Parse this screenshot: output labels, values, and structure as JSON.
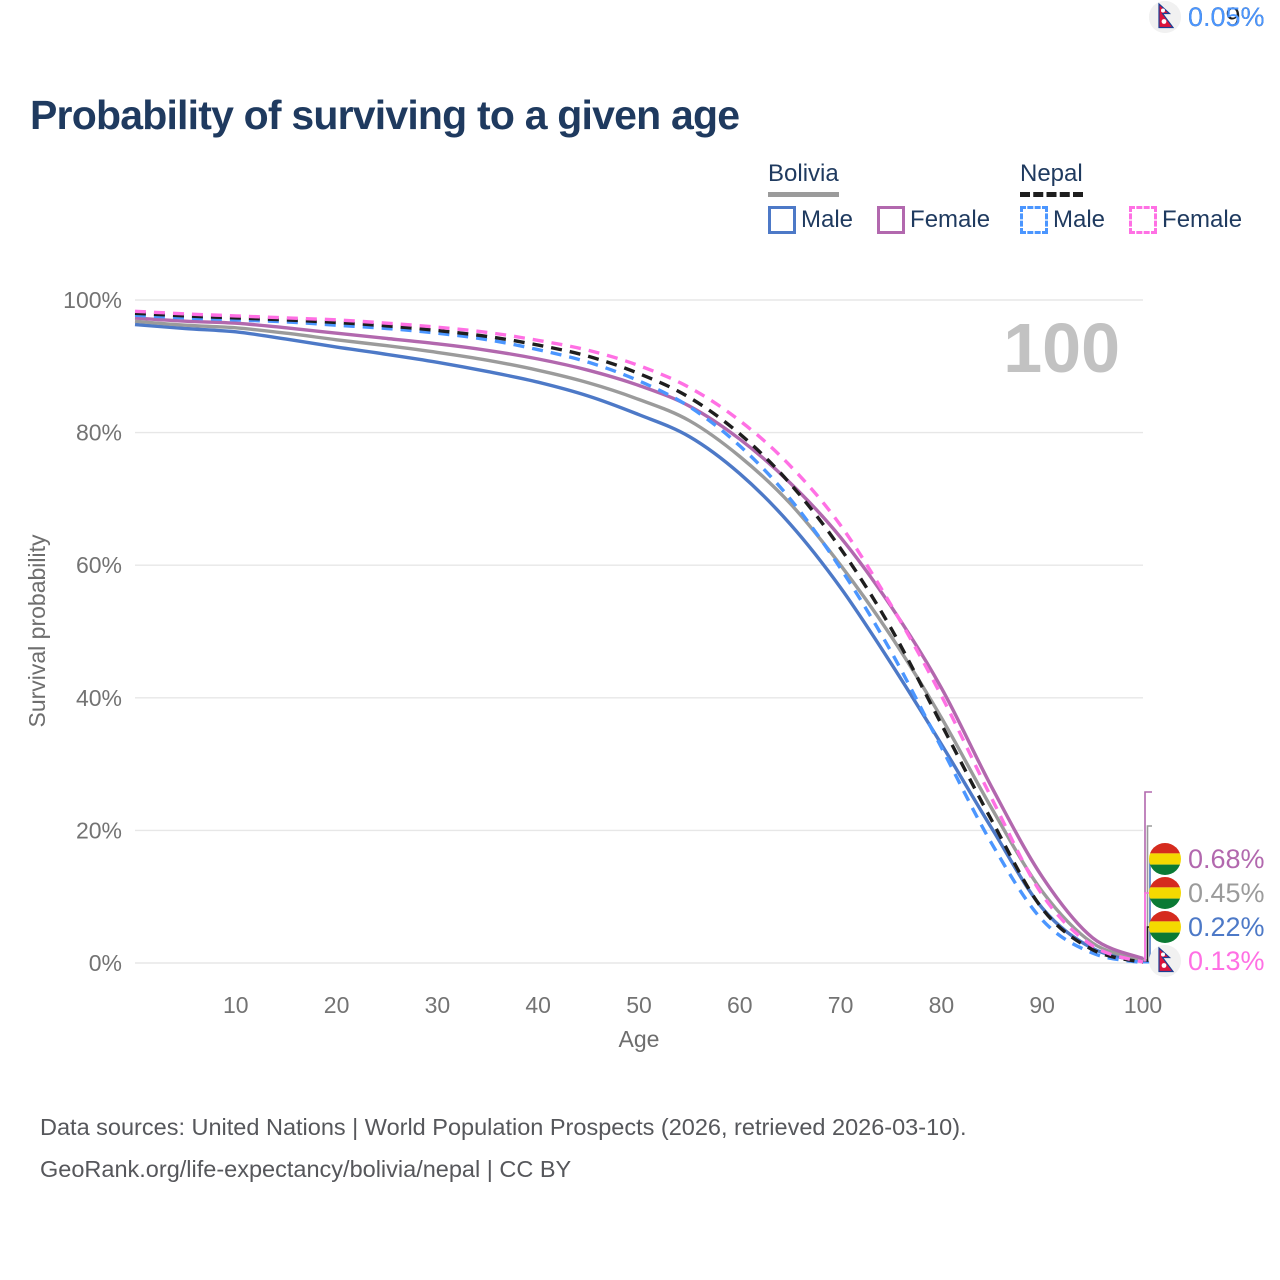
{
  "title": "Probability of surviving to a given age",
  "watermark": "100",
  "legend": {
    "groups": [
      {
        "country": "Bolivia",
        "line_style": "solid",
        "underline_color": "#9b9b9b",
        "items": [
          {
            "label": "Male",
            "color": "#4d79c7"
          },
          {
            "label": "Female",
            "color": "#b268ae"
          }
        ]
      },
      {
        "country": "Nepal",
        "line_style": "dashed",
        "underline_color": "#1e1e1e",
        "items": [
          {
            "label": "Male",
            "color": "#4b96ff"
          },
          {
            "label": "Female",
            "color": "#ff70e4"
          }
        ]
      }
    ]
  },
  "chart_data": {
    "type": "line",
    "title": "Probability of surviving to a given age",
    "xlabel": "Age",
    "ylabel": "Survival probability",
    "xlim": [
      0,
      100
    ],
    "ylim": [
      0,
      100
    ],
    "grid": "horizontal",
    "legend_position": "top-right",
    "x_ticks": [
      10,
      20,
      30,
      40,
      50,
      60,
      70,
      80,
      90,
      100
    ],
    "y_ticks": [
      "0%",
      "20%",
      "40%",
      "60%",
      "80%",
      "100%"
    ],
    "x": [
      0,
      5,
      10,
      15,
      20,
      25,
      30,
      35,
      40,
      45,
      50,
      55,
      60,
      65,
      70,
      75,
      80,
      85,
      90,
      95,
      100
    ],
    "series": [
      {
        "name": "Bolivia Male",
        "color": "#4d79c7",
        "dash": "solid",
        "values": [
          96.3,
          95.7,
          95.2,
          94.1,
          92.9,
          91.8,
          90.6,
          89.2,
          87.6,
          85.5,
          82.7,
          79.4,
          73.8,
          66.2,
          56.6,
          45.2,
          33.0,
          20.3,
          8.3,
          2.2,
          0.22
        ]
      },
      {
        "name": "Bolivia",
        "color": "#9b9b9b",
        "dash": "solid",
        "values": [
          96.8,
          96.2,
          95.8,
          95.0,
          94.0,
          93.1,
          92.1,
          90.9,
          89.4,
          87.5,
          85.0,
          81.8,
          76.4,
          69.3,
          60.0,
          49.3,
          37.0,
          23.3,
          10.8,
          3.0,
          0.45
        ]
      },
      {
        "name": "Bolivia Female",
        "color": "#b268ae",
        "dash": "solid",
        "values": [
          97.3,
          96.8,
          96.5,
          95.8,
          95.0,
          94.2,
          93.4,
          92.4,
          91.1,
          89.4,
          87.1,
          84.0,
          79.0,
          72.4,
          64.2,
          53.8,
          41.5,
          26.5,
          13.0,
          3.8,
          0.68
        ]
      },
      {
        "name": "Nepal Male",
        "color": "#4b96ff",
        "dash": "dashed",
        "values": [
          97.7,
          97.3,
          97.0,
          96.7,
          96.2,
          95.7,
          95.0,
          94.0,
          92.5,
          90.6,
          87.8,
          83.9,
          78.0,
          70.0,
          59.5,
          47.0,
          32.5,
          18.0,
          6.5,
          1.5,
          0.05
        ]
      },
      {
        "name": "Nepal",
        "color": "#1e1e1e",
        "dash": "dashed",
        "values": [
          98.0,
          97.6,
          97.3,
          97.0,
          96.6,
          96.1,
          95.4,
          94.5,
          93.2,
          91.5,
          88.9,
          85.3,
          79.8,
          72.3,
          62.5,
          50.5,
          36.0,
          21.5,
          8.2,
          2.0,
          0.09
        ]
      },
      {
        "name": "Nepal Female",
        "color": "#ff70e4",
        "dash": "dashed",
        "values": [
          98.3,
          97.9,
          97.6,
          97.3,
          97.0,
          96.5,
          95.9,
          95.1,
          93.9,
          92.4,
          90.1,
          86.8,
          81.8,
          75.0,
          66.0,
          54.0,
          40.3,
          24.8,
          10.3,
          2.6,
          0.13
        ]
      }
    ],
    "end_labels": [
      {
        "value": "0.68%",
        "series": 2,
        "series_name": "Bolivia Female",
        "flag": "bolivia",
        "color": "#b268ae"
      },
      {
        "value": "0.45%",
        "series": 1,
        "series_name": "Bolivia",
        "flag": "bolivia",
        "color": "#9b9b9b"
      },
      {
        "value": "0.22%",
        "series": 0,
        "series_name": "Bolivia Male",
        "flag": "bolivia",
        "color": "#4d79c7"
      },
      {
        "value": "0.13%",
        "series": 5,
        "series_name": "Nepal Female",
        "flag": "nepal",
        "color": "#ff70e4"
      },
      {
        "value": "0.09%",
        "series": 4,
        "series_name": "Nepal",
        "flag": "nepal",
        "color": "#1e1e1e"
      },
      {
        "value": "0.05%",
        "series": 3,
        "series_name": "Nepal Male",
        "flag": "nepal",
        "color": "#4b96ff"
      }
    ]
  },
  "footer": {
    "line1": "Data sources: United Nations | World Population Prospects (2026, retrieved 2026-03-10).",
    "line2": "GeoRank.org/life-expectancy/bolivia/nepal | CC BY"
  }
}
